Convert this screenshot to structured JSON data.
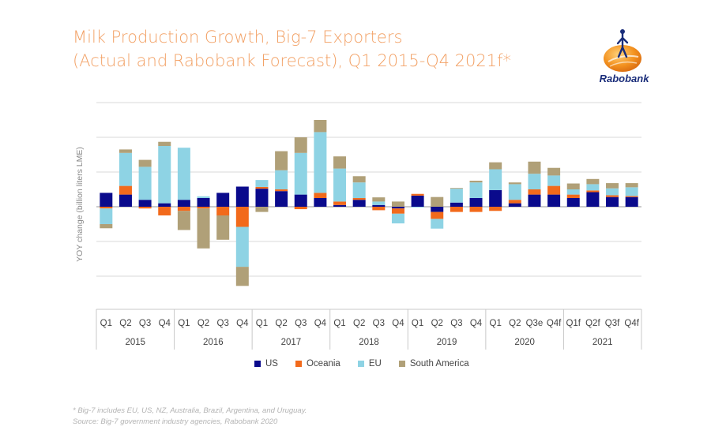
{
  "title_line1": "Milk Production Growth, Big-7 Exporters",
  "title_line2": "(Actual and Rabobank Forecast), Q1 2015-Q4 2021f*",
  "logo": {
    "text": "Rabobank",
    "icon": "rabobank-logo-icon",
    "color": "#f28c28"
  },
  "footnote_line1": "* Big-7 includes EU, US, NZ, Australia, Brazil, Argentina, and Uruguay.",
  "footnote_line2": "Source: Big-7 government industry agencies, Rabobank 2020",
  "chart_data": {
    "type": "bar",
    "stacked": true,
    "ylabel": "YOY change (billion liters LME)",
    "y_tick_labels_shown": false,
    "grid": true,
    "legend_position": "bottom",
    "categories": [
      "Q1",
      "Q2",
      "Q3",
      "Q4",
      "Q1",
      "Q2",
      "Q3",
      "Q4",
      "Q1",
      "Q2",
      "Q3",
      "Q4",
      "Q1",
      "Q2",
      "Q3",
      "Q4",
      "Q1",
      "Q2",
      "Q3",
      "Q4",
      "Q1",
      "Q2",
      "Q3e",
      "Q4f",
      "Q1f",
      "Q2f",
      "Q3f",
      "Q4f"
    ],
    "year_groups": [
      {
        "label": "2015",
        "count": 4
      },
      {
        "label": "2016",
        "count": 4
      },
      {
        "label": "2017",
        "count": 4
      },
      {
        "label": "2018",
        "count": 4
      },
      {
        "label": "2019",
        "count": 4
      },
      {
        "label": "2020",
        "count": 4
      },
      {
        "label": "2021",
        "count": 4
      }
    ],
    "series": [
      {
        "name": "US",
        "color": "#0a0a8c",
        "values": [
          0.4,
          0.35,
          0.2,
          0.1,
          0.2,
          0.25,
          0.4,
          0.58,
          0.52,
          0.45,
          0.35,
          0.25,
          0.05,
          0.2,
          0.05,
          -0.05,
          0.32,
          -0.15,
          0.12,
          0.25,
          0.48,
          0.1,
          0.35,
          0.35,
          0.25,
          0.42,
          0.28,
          0.28
        ]
      },
      {
        "name": "Oceania",
        "color": "#f26a1b",
        "values": [
          -0.05,
          0.25,
          -0.05,
          -0.25,
          -0.12,
          -0.05,
          -0.25,
          -0.58,
          0.05,
          0.05,
          -0.07,
          0.15,
          0.1,
          0.05,
          -0.1,
          -0.15,
          0.05,
          -0.2,
          -0.15,
          -0.15,
          -0.12,
          0.1,
          0.15,
          0.25,
          0.1,
          0.05,
          0.05,
          0.03
        ]
      },
      {
        "name": "EU",
        "color": "#8ed3e4",
        "values": [
          -0.45,
          0.95,
          0.95,
          1.65,
          1.5,
          0.05,
          0.0,
          -1.15,
          0.2,
          0.55,
          1.2,
          1.75,
          0.95,
          0.45,
          0.1,
          -0.28,
          -0.02,
          -0.28,
          0.4,
          0.45,
          0.6,
          0.45,
          0.45,
          0.3,
          0.15,
          0.18,
          0.2,
          0.25
        ]
      },
      {
        "name": "South America",
        "color": "#b0a078",
        "values": [
          -0.12,
          0.1,
          0.2,
          0.12,
          -0.55,
          -1.15,
          -0.7,
          -0.55,
          -0.15,
          0.55,
          0.45,
          0.35,
          0.35,
          0.18,
          0.12,
          0.15,
          0.0,
          0.28,
          0.02,
          0.05,
          0.2,
          0.05,
          0.35,
          0.22,
          0.17,
          0.15,
          0.15,
          0.12
        ]
      }
    ],
    "ylim": [
      -2.4,
      3.0
    ]
  }
}
